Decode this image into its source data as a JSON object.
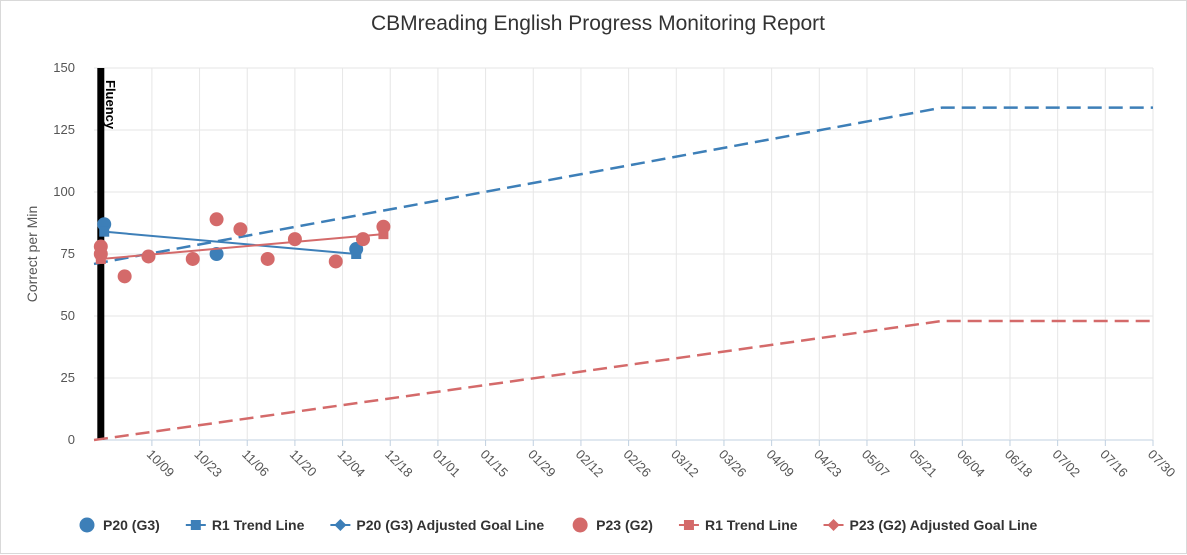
{
  "chart_data": {
    "type": "line",
    "title": "CBMreading English Progress Monitoring Report",
    "ylabel": "Correct per Min",
    "xlabel": "",
    "ylim": [
      0,
      150
    ],
    "yticks": [
      0,
      25,
      50,
      75,
      100,
      125,
      150
    ],
    "xlim": [
      "09/22",
      "07/30"
    ],
    "xticks": [
      "10/09",
      "10/23",
      "11/06",
      "11/20",
      "12/04",
      "12/18",
      "01/01",
      "01/15",
      "01/29",
      "02/12",
      "02/26",
      "03/12",
      "03/26",
      "04/09",
      "04/23",
      "05/07",
      "05/21",
      "06/04",
      "06/18",
      "07/02",
      "07/16",
      "07/30"
    ],
    "grid": true,
    "legend_position": "bottom",
    "phase_marker": {
      "x": "09/24",
      "label": "Fluency"
    },
    "series": [
      {
        "name": "P20 (G3)",
        "kind": "scatter",
        "color": "#3d7fb8",
        "marker": "circle",
        "points": [
          [
            "09/25",
            87
          ],
          [
            "10/28",
            75
          ],
          [
            "12/08",
            77
          ]
        ]
      },
      {
        "name": "R1 Trend Line",
        "kind": "line",
        "color": "#3d7fb8",
        "marker": "square",
        "points": [
          [
            "09/25",
            84
          ],
          [
            "12/08",
            75
          ]
        ]
      },
      {
        "name": "P20 (G3) Adjusted Goal Line",
        "kind": "dashed",
        "color": "#3d7fb8",
        "marker": "diamond",
        "points": [
          [
            "09/22",
            71
          ],
          [
            "05/29",
            134
          ],
          [
            "07/30",
            134
          ]
        ]
      },
      {
        "name": "P23 (G2)",
        "kind": "scatter",
        "color": "#d46a6a",
        "marker": "circle",
        "points": [
          [
            "09/24",
            78
          ],
          [
            "09/24",
            75
          ],
          [
            "10/01",
            66
          ],
          [
            "10/08",
            74
          ],
          [
            "10/21",
            73
          ],
          [
            "10/28",
            89
          ],
          [
            "11/04",
            85
          ],
          [
            "11/12",
            73
          ],
          [
            "11/20",
            81
          ],
          [
            "12/02",
            72
          ],
          [
            "12/10",
            81
          ],
          [
            "12/16",
            86
          ]
        ]
      },
      {
        "name": "R1 Trend Line",
        "kind": "line",
        "color": "#d46a6a",
        "marker": "square",
        "points": [
          [
            "09/24",
            73
          ],
          [
            "12/16",
            83
          ]
        ]
      },
      {
        "name": "P23 (G2) Adjusted Goal Line",
        "kind": "dashed",
        "color": "#d46a6a",
        "marker": "diamond",
        "points": [
          [
            "09/22",
            0
          ],
          [
            "05/29",
            48
          ],
          [
            "07/30",
            48
          ]
        ]
      }
    ]
  }
}
